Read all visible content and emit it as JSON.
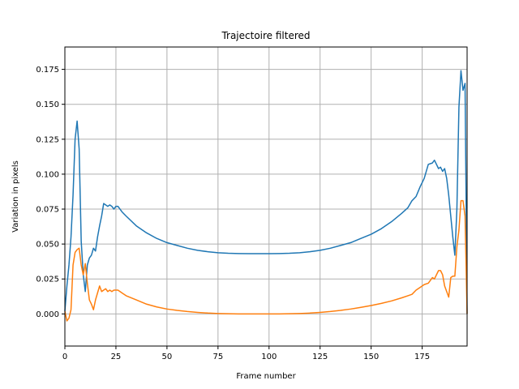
{
  "chart_data": {
    "type": "line",
    "title": "Trajectoire filtered",
    "xlabel": "Frame number",
    "ylabel": "Variation in pixels",
    "xlim": [
      0,
      197
    ],
    "ylim": [
      -0.023,
      0.191
    ],
    "xticks": [
      0,
      25,
      50,
      75,
      100,
      125,
      150,
      175
    ],
    "yticks": [
      0.0,
      0.025,
      0.05,
      0.075,
      0.1,
      0.125,
      0.15,
      0.175
    ],
    "xtick_labels": [
      "0",
      "25",
      "50",
      "75",
      "100",
      "125",
      "150",
      "175"
    ],
    "ytick_labels": [
      "0.000",
      "0.025",
      "0.050",
      "0.075",
      "0.100",
      "0.125",
      "0.150",
      "0.175"
    ],
    "grid": true,
    "series": [
      {
        "color": "#1f77b4",
        "x": [
          0,
          1,
          2,
          3,
          4,
          5,
          6,
          7,
          8,
          9,
          10,
          11,
          12,
          13,
          14,
          15,
          16,
          17,
          18,
          19,
          20,
          21,
          22,
          23,
          24,
          25,
          26,
          27,
          28,
          30,
          35,
          40,
          45,
          50,
          55,
          60,
          65,
          70,
          75,
          80,
          85,
          90,
          95,
          100,
          105,
          110,
          115,
          120,
          125,
          130,
          135,
          140,
          145,
          150,
          155,
          160,
          165,
          168,
          170,
          172,
          174,
          176,
          178,
          180,
          181,
          182,
          183,
          184,
          185,
          186,
          187,
          188,
          189,
          190,
          191,
          192,
          193,
          194,
          195,
          196,
          197
        ],
        "values": [
          0.002,
          0.02,
          0.035,
          0.055,
          0.085,
          0.125,
          0.138,
          0.118,
          0.052,
          0.028,
          0.016,
          0.035,
          0.04,
          0.042,
          0.047,
          0.045,
          0.055,
          0.063,
          0.07,
          0.079,
          0.078,
          0.077,
          0.078,
          0.077,
          0.075,
          0.077,
          0.077,
          0.075,
          0.073,
          0.07,
          0.063,
          0.058,
          0.054,
          0.051,
          0.049,
          0.047,
          0.0455,
          0.0445,
          0.0438,
          0.0434,
          0.0432,
          0.0431,
          0.0431,
          0.0431,
          0.0432,
          0.0434,
          0.0438,
          0.0445,
          0.0455,
          0.047,
          0.049,
          0.051,
          0.054,
          0.057,
          0.061,
          0.066,
          0.072,
          0.076,
          0.081,
          0.084,
          0.091,
          0.097,
          0.107,
          0.108,
          0.11,
          0.107,
          0.104,
          0.105,
          0.102,
          0.104,
          0.097,
          0.085,
          0.07,
          0.055,
          0.042,
          0.075,
          0.148,
          0.174,
          0.16,
          0.165,
          0.0
        ]
      },
      {
        "color": "#ff7f0e",
        "x": [
          0,
          1,
          2,
          3,
          4,
          5,
          6,
          7,
          8,
          9,
          10,
          11,
          12,
          13,
          14,
          15,
          16,
          17,
          18,
          19,
          20,
          21,
          22,
          23,
          24,
          25,
          26,
          27,
          28,
          30,
          35,
          40,
          45,
          50,
          55,
          60,
          65,
          70,
          75,
          80,
          85,
          90,
          95,
          100,
          105,
          110,
          115,
          120,
          125,
          130,
          135,
          140,
          145,
          150,
          155,
          160,
          165,
          168,
          170,
          172,
          174,
          176,
          178,
          180,
          181,
          182,
          183,
          184,
          185,
          186,
          187,
          188,
          189,
          190,
          191,
          192,
          193,
          194,
          195,
          196,
          197
        ],
        "values": [
          0.002,
          -0.005,
          -0.003,
          0.003,
          0.035,
          0.044,
          0.046,
          0.047,
          0.035,
          0.028,
          0.036,
          0.022,
          0.01,
          0.007,
          0.003,
          0.01,
          0.015,
          0.02,
          0.016,
          0.017,
          0.018,
          0.016,
          0.017,
          0.016,
          0.017,
          0.017,
          0.017,
          0.016,
          0.015,
          0.013,
          0.01,
          0.007,
          0.005,
          0.0035,
          0.0025,
          0.0017,
          0.0011,
          0.0006,
          0.0003,
          0.0001,
          0.0,
          0.0,
          0.0,
          0.0,
          0.0,
          0.0001,
          0.0003,
          0.0006,
          0.0011,
          0.0017,
          0.0025,
          0.0035,
          0.0047,
          0.006,
          0.0075,
          0.0093,
          0.0115,
          0.013,
          0.014,
          0.017,
          0.019,
          0.021,
          0.022,
          0.026,
          0.025,
          0.028,
          0.031,
          0.031,
          0.028,
          0.02,
          0.016,
          0.012,
          0.026,
          0.027,
          0.027,
          0.048,
          0.06,
          0.081,
          0.081,
          0.07,
          0.0
        ]
      }
    ]
  }
}
